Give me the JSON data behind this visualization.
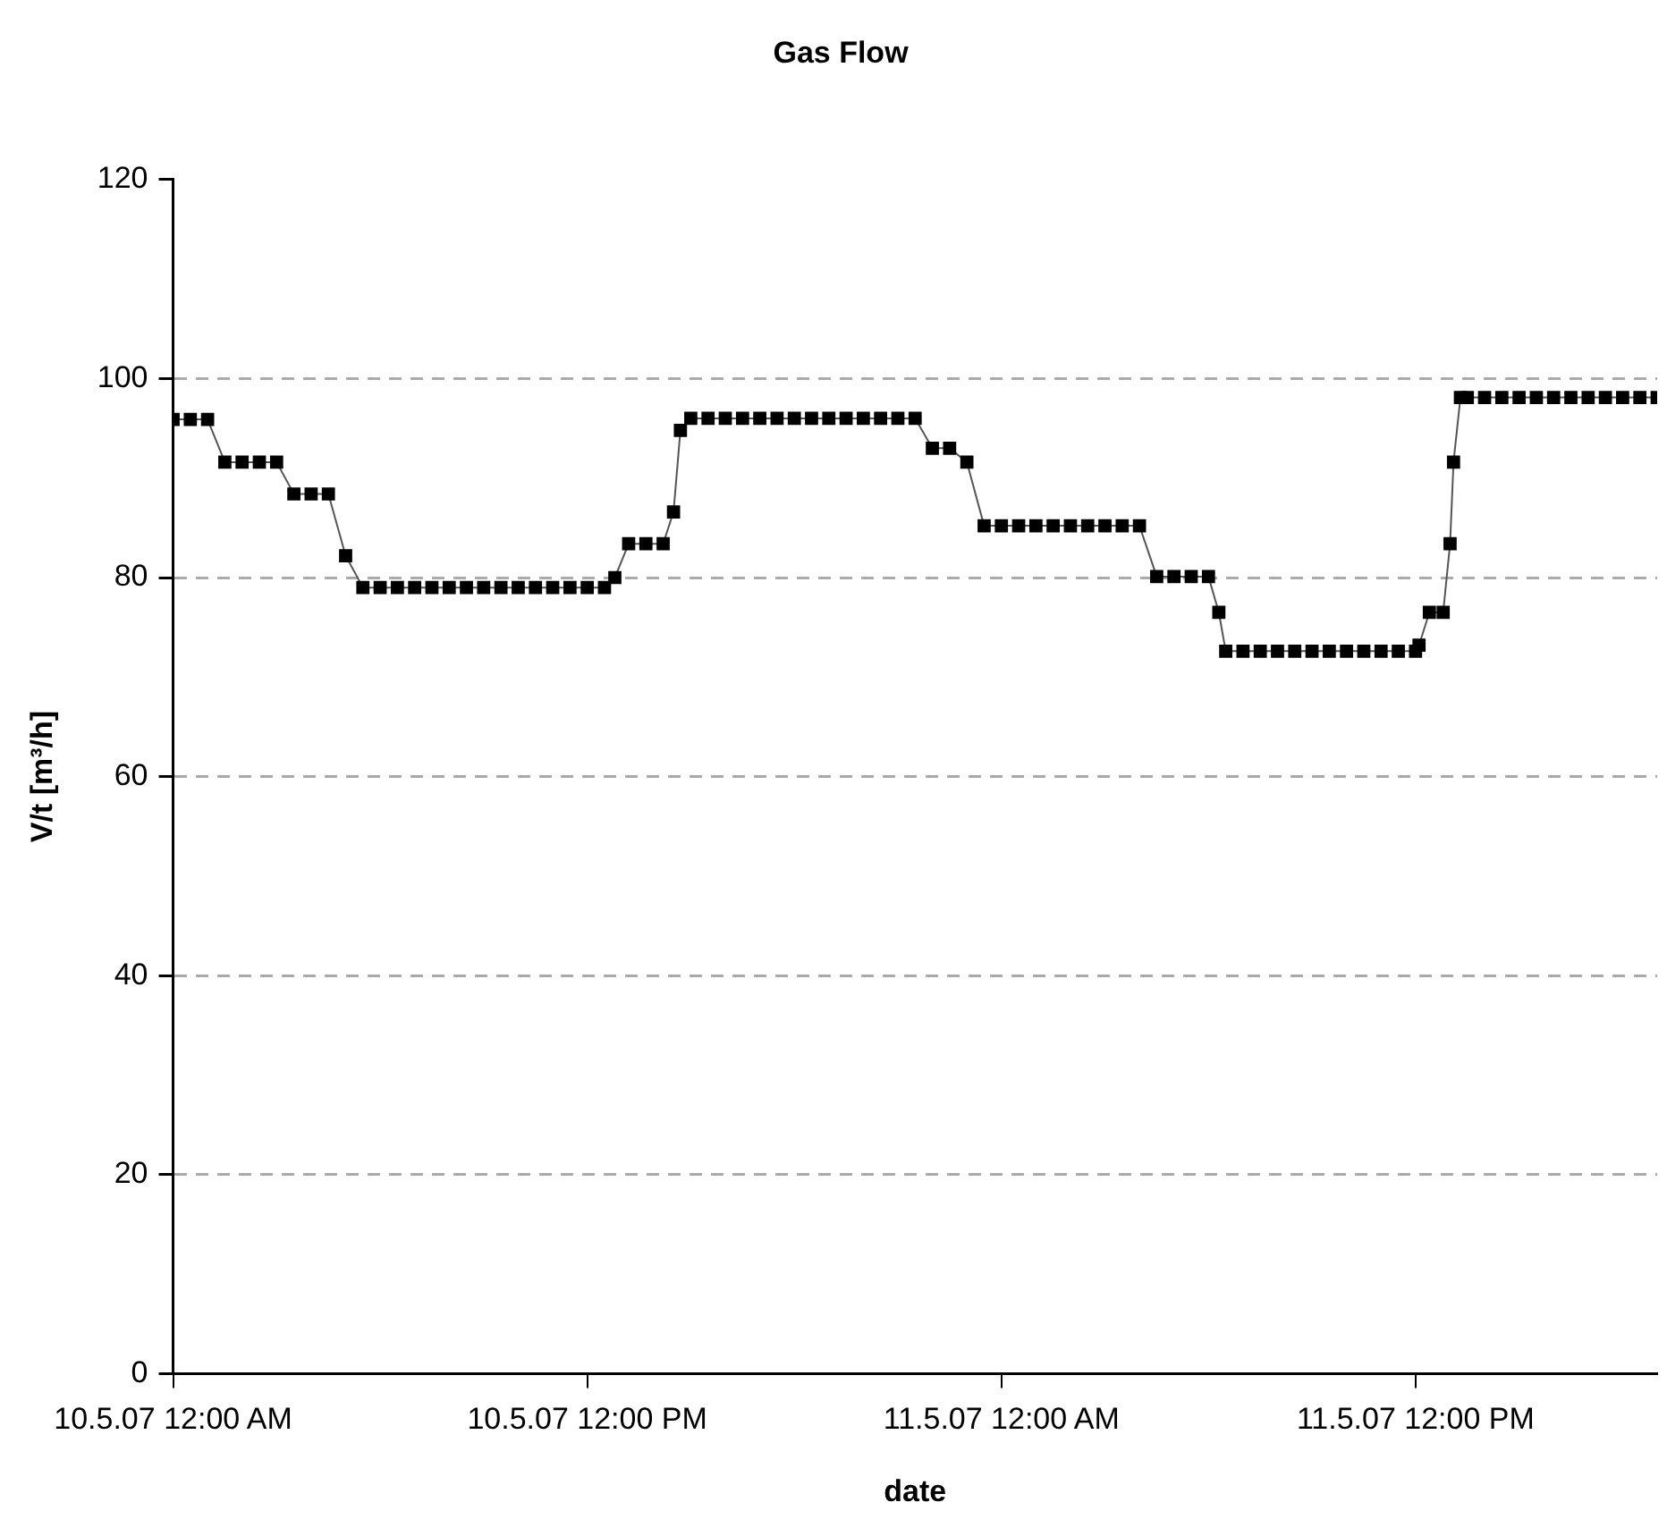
{
  "chart_data": {
    "type": "line",
    "title": "Gas Flow",
    "xlabel": "date",
    "ylabel": "V/t [m³/h]",
    "x": [
      "--05-10T00:00",
      "--05-10T00:30",
      "--05-10T01:00",
      "--05-10T01:30",
      "--05-10T02:00",
      "--05-10T02:30",
      "--05-10T03:00",
      "--05-10T03:30",
      "--05-10T04:00",
      "--05-10T04:30",
      "--05-10T05:00",
      "--05-10T05:30",
      "--05-10T06:00",
      "--05-10T06:30",
      "--05-10T07:00",
      "--05-10T07:30",
      "--05-10T08:00",
      "--05-10T08:30",
      "--05-10T09:00",
      "--05-10T09:30",
      "--05-10T10:00",
      "--05-10T10:30",
      "--05-10T11:00",
      "--05-10T11:30",
      "--05-10T12:00",
      "--05-10T12:30",
      "--05-10T12:48",
      "--05-10T13:12",
      "--05-10T13:42",
      "--05-10T14:12",
      "--05-10T14:30",
      "--05-10T14:42",
      "--05-10T15:00",
      "--05-10T15:30",
      "--05-10T16:00",
      "--05-10T16:30",
      "--05-10T17:00",
      "--05-10T17:30",
      "--05-10T18:00",
      "--05-10T18:30",
      "--05-10T19:00",
      "--05-10T19:30",
      "--05-10T20:00",
      "--05-10T20:30",
      "--05-10T21:00",
      "--05-10T21:30",
      "--05-10T22:00",
      "--05-10T22:30",
      "--05-10T23:00",
      "--05-10T23:30",
      "--05-11T00:00",
      "--05-11T00:30",
      "--05-11T01:00",
      "--05-11T01:30",
      "--05-11T02:00",
      "--05-11T02:30",
      "--05-11T03:00",
      "--05-11T03:30",
      "--05-11T04:00",
      "--05-11T04:30",
      "--05-11T05:00",
      "--05-11T05:30",
      "--05-11T06:00",
      "--05-11T06:18",
      "--05-11T06:30",
      "--05-11T07:00",
      "--05-11T07:30",
      "--05-11T08:00",
      "--05-11T08:30",
      "--05-11T09:00",
      "--05-11T09:30",
      "--05-11T10:00",
      "--05-11T10:30",
      "--05-11T11:00",
      "--05-11T11:30",
      "--05-11T12:00",
      "--05-11T12:06",
      "--05-11T12:24",
      "--05-11T12:48",
      "--05-11T13:00",
      "--05-11T13:06",
      "--05-11T13:18",
      "--05-11T13:30",
      "--05-11T14:00",
      "--05-11T14:30",
      "--05-11T15:00",
      "--05-11T15:30",
      "--05-11T16:00",
      "--05-11T16:30",
      "--05-11T17:00",
      "--05-11T17:30",
      "--05-11T18:00",
      "--05-11T18:30",
      "--05-11T19:00"
    ],
    "series": [
      {
        "color": "#000000",
        "values": [
          95.9,
          95.9,
          95.9,
          91.6,
          91.6,
          91.6,
          91.6,
          88.4,
          88.4,
          88.4,
          82.2,
          79,
          79,
          79,
          79,
          79,
          79,
          79,
          79,
          79,
          79,
          79,
          79,
          79,
          79,
          79,
          80,
          83.4,
          83.4,
          83.4,
          86.6,
          94.8,
          96,
          96,
          96,
          96,
          96,
          96,
          96,
          96,
          96,
          96,
          96,
          96,
          96,
          96,
          93,
          93,
          91.6,
          85.2,
          85.2,
          85.2,
          85.2,
          85.2,
          85.2,
          85.2,
          85.2,
          85.2,
          85.2,
          80.1,
          80.1,
          80.1,
          80.1,
          76.5,
          72.6,
          72.6,
          72.6,
          72.6,
          72.6,
          72.6,
          72.6,
          72.6,
          72.6,
          72.6,
          72.6,
          72.6,
          73.2,
          76.5,
          76.5,
          83.4,
          91.6,
          98.1,
          98.1,
          98.1,
          98.1,
          98.1,
          98.1,
          98.1,
          98.1,
          98.1,
          98.1,
          98.1,
          98.1,
          98.1
        ]
      }
    ],
    "xlim": [
      "--05-10T00:00",
      "--05-11T19:00"
    ],
    "xticks": [
      {
        "value": "--05-10T00:00",
        "label": "10.5.07 12:00 AM"
      },
      {
        "value": "--05-10T12:00",
        "label": "10.5.07 12:00 PM"
      },
      {
        "value": "--05-11T00:00",
        "label": "11.5.07 12:00 AM"
      },
      {
        "value": "--05-11T12:00",
        "label": "11.5.07 12:00 PM"
      }
    ],
    "ylim": [
      0,
      120
    ],
    "yticks": [
      0,
      20,
      40,
      60,
      80,
      100,
      120
    ],
    "grid": "y",
    "marker": "square",
    "line_style": "solid"
  }
}
